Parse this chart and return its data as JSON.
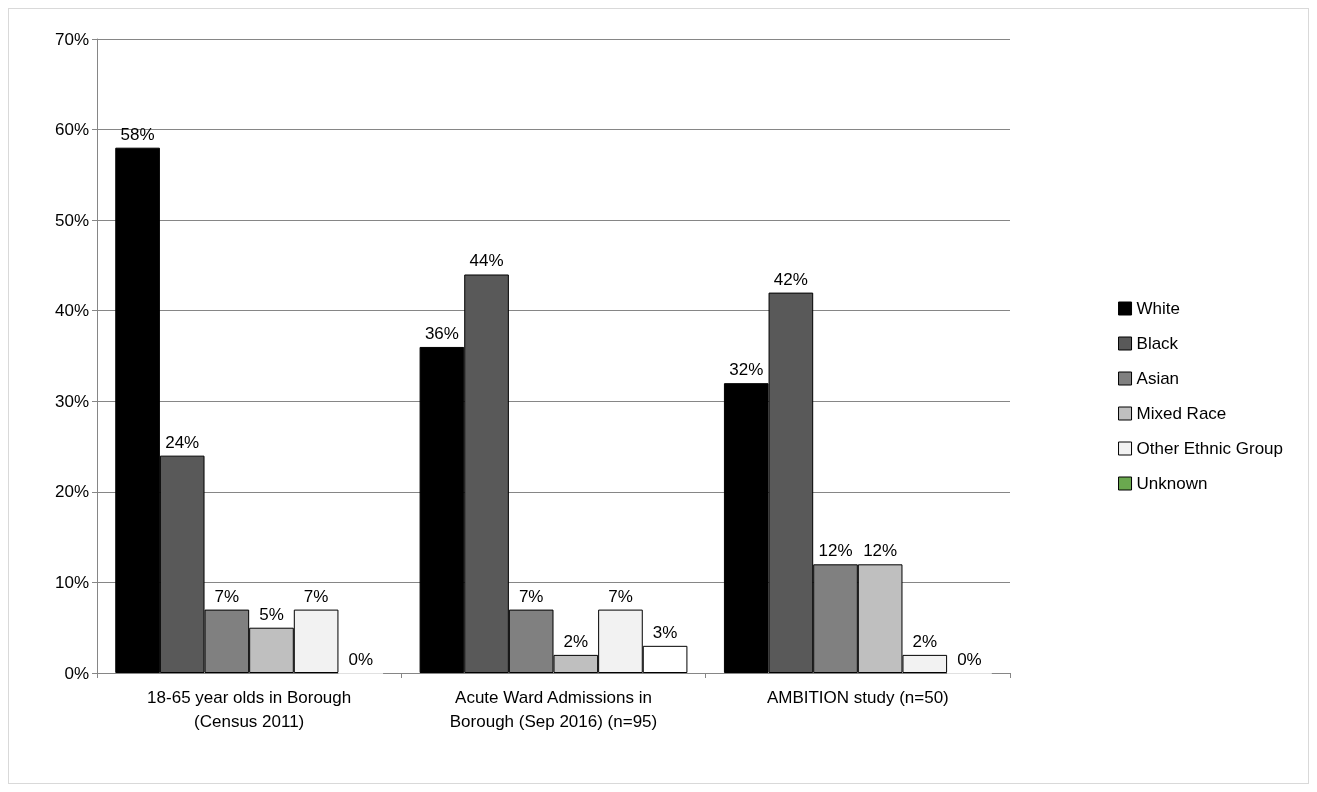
{
  "chart_data": {
    "type": "bar",
    "categories": [
      "18-65 year olds in Borough\n(Census 2011)",
      "Acute Ward Admissions in\nBorough (Sep 2016) (n=95)",
      "AMBITION study (n=50)"
    ],
    "series": [
      {
        "name": "White",
        "color": "#000000",
        "values": [
          58,
          36,
          32
        ],
        "value_labels": [
          "58%",
          "36%",
          "32%"
        ]
      },
      {
        "name": "Black",
        "color": "#595959",
        "values": [
          24,
          44,
          42
        ],
        "value_labels": [
          "24%",
          "44%",
          "42%"
        ]
      },
      {
        "name": "Asian",
        "color": "#808080",
        "values": [
          7,
          7,
          12
        ],
        "value_labels": [
          "7%",
          "7%",
          "12%"
        ]
      },
      {
        "name": "Mixed Race",
        "color": "#bfbfbf",
        "values": [
          5,
          2,
          12
        ],
        "value_labels": [
          "5%",
          "2%",
          "12%"
        ]
      },
      {
        "name": "Other Ethnic Group",
        "color": "#f2f2f2",
        "values": [
          7,
          7,
          2
        ],
        "value_labels": [
          "7%",
          "7%",
          "2%"
        ]
      },
      {
        "name": "Unknown",
        "color": "#6aa84f",
        "colors": [
          "#ffffff",
          "#ffffff",
          "#ffffff"
        ],
        "values": [
          0,
          3,
          0
        ],
        "value_labels": [
          "0%",
          "3%",
          "0%"
        ]
      }
    ],
    "ylim": [
      0,
      70
    ],
    "yticks": [
      {
        "value": 0,
        "label": "0%"
      },
      {
        "value": 10,
        "label": "10%"
      },
      {
        "value": 20,
        "label": "20%"
      },
      {
        "value": 30,
        "label": "30%"
      },
      {
        "value": 40,
        "label": "40%"
      },
      {
        "value": 50,
        "label": "50%"
      },
      {
        "value": 60,
        "label": "60%"
      },
      {
        "value": 70,
        "label": "70%"
      }
    ],
    "grid": "y",
    "legend": "right"
  }
}
